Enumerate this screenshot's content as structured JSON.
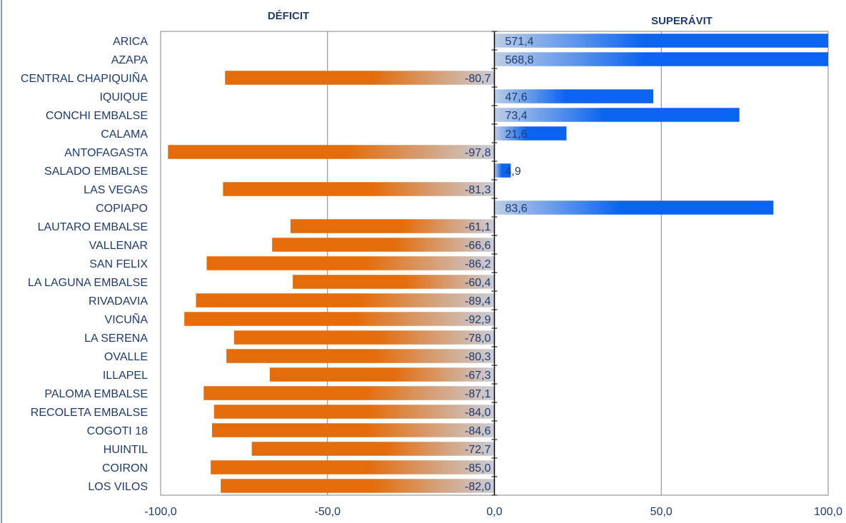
{
  "chart_data": {
    "type": "bar",
    "orientation": "horizontal",
    "headers": {
      "left": "DÉFICIT",
      "right": "SUPERÁVIT"
    },
    "categories": [
      "ARICA",
      "AZAPA",
      "CENTRAL CHAPIQUIÑA",
      "IQUIQUE",
      "CONCHI EMBALSE",
      "CALAMA",
      "ANTOFAGASTA",
      "SALADO EMBALSE",
      "LAS VEGAS",
      "COPIAPO",
      "LAUTARO EMBALSE",
      "VALLENAR",
      "SAN FELIX",
      "LA LAGUNA EMBALSE",
      "RIVADAVIA",
      "VICUÑA",
      "LA SERENA",
      "OVALLE",
      "ILLAPEL",
      "PALOMA EMBALSE",
      "RECOLETA EMBALSE",
      "COGOTI 18",
      "HUINTIL",
      "COIRON",
      "LOS VILOS"
    ],
    "values": [
      571.4,
      568.8,
      -80.7,
      47.6,
      73.4,
      21.6,
      -97.8,
      4.9,
      -81.3,
      83.6,
      -61.1,
      -66.6,
      -86.2,
      -60.4,
      -89.4,
      -92.9,
      -78.0,
      -80.3,
      -67.3,
      -87.1,
      -84.0,
      -84.6,
      -72.7,
      -85.0,
      -82.0
    ],
    "value_labels": [
      "571,4",
      "568,8",
      "-80,7",
      "47,6",
      "73,4",
      "21,6",
      "-97,8",
      "4,9",
      "-81,3",
      "83,6",
      "-61,1",
      "-66,6",
      "-86,2",
      "-60,4",
      "-89,4",
      "-92,9",
      "-78,0",
      "-80,3",
      "-67,3",
      "-87,1",
      "-84,0",
      "-84,6",
      "-72,7",
      "-85,0",
      "-82,0"
    ],
    "xlim": [
      -100,
      100
    ],
    "xticks": [
      -100,
      -50,
      0,
      50,
      100
    ],
    "xtick_labels": [
      "-100,0",
      "-50,0",
      "0,0",
      "50,0",
      "100,0"
    ],
    "grid": true,
    "colors": {
      "negative": "#e46c0a",
      "positive": "#0b64f0",
      "axis_text": "#1f3b6e",
      "grid": "#808080"
    }
  }
}
